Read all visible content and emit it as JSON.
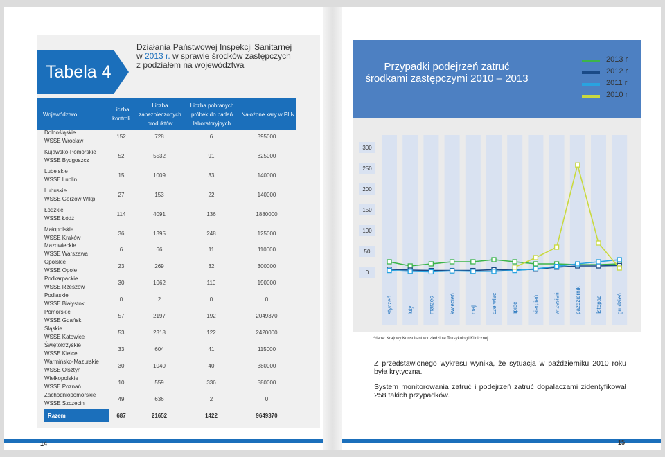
{
  "left_page": {
    "tabela_label": "Tabela 4",
    "subtitle_line1": "Działania Państwowej Inspekcji Sanitarnej",
    "subtitle_line2_prefix": "w ",
    "subtitle_year": "2013 r.",
    "subtitle_line2_rest": " w sprawie środków zastępczych",
    "subtitle_line3": "z podziałem na województwa",
    "headers": {
      "wojewodztwo": "Województwo",
      "kontroli": "Liczba kontroli",
      "produktow": "Liczba zabezpieczonych produktów",
      "probek": "Liczba pobranych próbek do badań laboratoryjnych",
      "kary": "Nałożone kary w PLN"
    },
    "rows": [
      {
        "woj": "Dolnośląskie",
        "wsse": "WSSE Wrocław",
        "kontroli": "152",
        "produktow": "728",
        "probek": "6",
        "kary": "395000"
      },
      {
        "woj": "Kujawsko-Pomorskie",
        "wsse": "WSSE Bydgoszcz",
        "kontroli": "52",
        "produktow": "5532",
        "probek": "91",
        "kary": "825000"
      },
      {
        "woj": "Lubelskie",
        "wsse": "WSSE Lublin",
        "kontroli": "15",
        "produktow": "1009",
        "probek": "33",
        "kary": "140000"
      },
      {
        "woj": "Lubuskie",
        "wsse": "WSSE Gorzów Wlkp.",
        "kontroli": "27",
        "produktow": "153",
        "probek": "22",
        "kary": "140000"
      },
      {
        "woj": "Łódzkie",
        "wsse": "WSSE Łódź",
        "kontroli": "114",
        "produktow": "4091",
        "probek": "136",
        "kary": "1880000"
      },
      {
        "woj": "Małopolskie",
        "wsse": "WSSE Kraków",
        "kontroli": "36",
        "produktow": "1395",
        "probek": "248",
        "kary": "125000"
      },
      {
        "woj": "Mazowieckie",
        "wsse": "WSSE Warszawa",
        "kontroli": "6",
        "produktow": "66",
        "probek": "11",
        "kary": "110000"
      },
      {
        "woj": "Opolskie",
        "wsse": "WSSE Opole",
        "kontroli": "23",
        "produktow": "269",
        "probek": "32",
        "kary": "300000"
      },
      {
        "woj": "Podkarpackie",
        "wsse": "WSSE Rzeszów",
        "kontroli": "30",
        "produktow": "1062",
        "probek": "110",
        "kary": "190000"
      },
      {
        "woj": "Podlaskie",
        "wsse": "WSSE Białystok",
        "kontroli": "0",
        "produktow": "2",
        "probek": "0",
        "kary": "0"
      },
      {
        "woj": "Pomorskie",
        "wsse": "WSSE Gdańsk",
        "kontroli": "57",
        "produktow": "2197",
        "probek": "192",
        "kary": "2049370"
      },
      {
        "woj": "Śląskie",
        "wsse": "WSSE Katowice",
        "kontroli": "53",
        "produktow": "2318",
        "probek": "122",
        "kary": "2420000"
      },
      {
        "woj": "Świętokrzyskie",
        "wsse": "WSSE Kielce",
        "kontroli": "33",
        "produktow": "604",
        "probek": "41",
        "kary": "115000"
      },
      {
        "woj": "Warmińsko-Mazurskie",
        "wsse": "WSSE Olsztyn",
        "kontroli": "30",
        "produktow": "1040",
        "probek": "40",
        "kary": "380000"
      },
      {
        "woj": "Wielkopolskie",
        "wsse": "WSSE Poznań",
        "kontroli": "10",
        "produktow": "559",
        "probek": "336",
        "kary": "580000"
      },
      {
        "woj": "Zachodniopomorskie",
        "wsse": "WSSE Szczecin",
        "kontroli": "49",
        "produktow": "636",
        "probek": "2",
        "kary": "0"
      }
    ],
    "total": {
      "label": "Razem",
      "kontroli": "687",
      "produktow": "21652",
      "probek": "1422",
      "kary": "9649370"
    },
    "page_number": "14"
  },
  "right_page": {
    "chart_title_line1": "Przypadki podejrzeń zatruć",
    "chart_title_line2": "środkami zastępczymi 2010 – 2013",
    "footnote": "*dane: Krajowy Konsultant w dziedzinie Toksykologii Klinicznej",
    "paragraph1": "Z przedstawionego wykresu wynika, że sytuacja w październiku 2010 roku była krytyczna.",
    "paragraph2": "System monitorowania zatruć i podejrzeń zatruć dopalaczami zidentyfikował 258 takich przypadków.",
    "page_number": "15",
    "colors": {
      "y2013": "#3cb54a",
      "y2012": "#1a4a87",
      "y2011": "#29a3e0",
      "y2010": "#c9d93f",
      "band": "#d9e2f1",
      "accent": "#1b6fbb"
    }
  },
  "chart_data": {
    "type": "line",
    "title": "Przypadki podejrzeń zatruć środkami zastępczymi 2010 – 2013",
    "categories": [
      "styczeń",
      "luty",
      "marzec",
      "kwiecień",
      "maj",
      "czerwiec",
      "lipiec",
      "sierpień",
      "wrzesień",
      "październik",
      "listopad",
      "grudzień"
    ],
    "y_ticks": [
      "0",
      "50",
      "100",
      "150",
      "200",
      "250",
      "300"
    ],
    "ylim": [
      0,
      300
    ],
    "legend": [
      "2013 r",
      "2012 r",
      "2011 r",
      "2010 r"
    ],
    "series": [
      {
        "name": "2013 r",
        "values": [
          25,
          15,
          20,
          25,
          25,
          30,
          25,
          20,
          20,
          18,
          18,
          20
        ]
      },
      {
        "name": "2012 r",
        "values": [
          7,
          5,
          4,
          4,
          4,
          6,
          5,
          7,
          12,
          15,
          15,
          16
        ]
      },
      {
        "name": "2011 r",
        "values": [
          4,
          2,
          1,
          3,
          2,
          2,
          4,
          8,
          14,
          20,
          25,
          30
        ]
      },
      {
        "name": "2010 r",
        "values": [
          null,
          null,
          null,
          null,
          null,
          null,
          12,
          35,
          60,
          258,
          70,
          10
        ]
      }
    ],
    "legend_position": "top-right"
  }
}
